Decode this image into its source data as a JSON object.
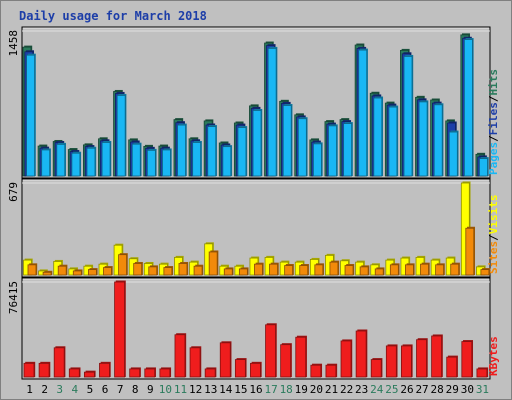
{
  "chart_data": {
    "type": "bar",
    "title": "Daily usage for March 2018",
    "x": [
      "1",
      "2",
      "3",
      "4",
      "5",
      "6",
      "7",
      "8",
      "9",
      "10",
      "11",
      "12",
      "13",
      "14",
      "15",
      "16",
      "17",
      "18",
      "19",
      "20",
      "21",
      "22",
      "23",
      "24",
      "25",
      "26",
      "27",
      "28",
      "29",
      "30",
      "31"
    ],
    "weekend_days": [
      "3",
      "4",
      "10",
      "11",
      "17",
      "18",
      "24",
      "25",
      "31"
    ],
    "panels": [
      {
        "name": "pages-files-hits",
        "ymax_label": "1458",
        "ymax": 1458,
        "labels": [
          "Pages",
          "/",
          "Files",
          "/",
          "Hits"
        ],
        "series": [
          {
            "name": "Hits",
            "color": "#2a7b5c",
            "values": [
              1296,
              301,
              347,
              266,
              313,
              374,
              850,
              363,
              298,
              301,
              567,
              374,
              554,
              332,
              533,
              705,
              1337,
              751,
              615,
              363,
              547,
              567,
              1317,
              832,
              733,
              1263,
              791,
              764,
              554,
              1419,
              218
            ]
          },
          {
            "name": "Files",
            "color": "#1d3ea8",
            "values": [
              1249,
              280,
              337,
              246,
              296,
              354,
              830,
              342,
              278,
              280,
              536,
              354,
              513,
              312,
              512,
              680,
              1311,
              730,
              594,
              341,
              522,
              547,
              1283,
              805,
              713,
              1229,
              766,
              733,
              533,
              1385,
              192
            ]
          },
          {
            "name": "Pages",
            "color": "#19b7f4",
            "values": [
              1215,
              262,
              318,
              229,
              279,
              337,
              810,
              320,
              258,
              262,
              512,
              337,
              497,
              295,
              487,
              659,
              1283,
              709,
              576,
              323,
              504,
              527,
              1266,
              784,
              693,
              1202,
              745,
              716,
              442,
              1372,
              175
            ]
          }
        ]
      },
      {
        "name": "sites-visits",
        "ymax_label": "679",
        "ymax": 679,
        "labels": [
          "Sites",
          "/",
          "Visits"
        ],
        "series": [
          {
            "name": "Visits",
            "color": "#ffff00",
            "values": [
              110,
              30,
              100,
              45,
              65,
              80,
              220,
              120,
              85,
              80,
              130,
              95,
              230,
              65,
              65,
              125,
              130,
              95,
              95,
              115,
              145,
              105,
              95,
              75,
              110,
              125,
              130,
              110,
              125,
              679,
              60
            ]
          },
          {
            "name": "Sites",
            "color": "#f28a0a",
            "values": [
              75,
              20,
              65,
              30,
              40,
              55,
              150,
              85,
              60,
              55,
              85,
              65,
              170,
              45,
              45,
              80,
              80,
              70,
              70,
              75,
              95,
              70,
              60,
              45,
              75,
              75,
              80,
              75,
              80,
              345,
              40
            ]
          }
        ]
      },
      {
        "name": "kbytes",
        "ymax_label": "76415",
        "ymax": 76415,
        "labels": [
          "KBytes"
        ],
        "series": [
          {
            "name": "KBytes",
            "color": "#ef1d1d",
            "values": [
              11000,
              11000,
              23500,
              6500,
              3900,
              11000,
              76415,
              6500,
              6500,
              6500,
              34000,
              23500,
              6500,
              27500,
              14000,
              11000,
              42000,
              26000,
              32000,
              9500,
              9500,
              29000,
              37000,
              14000,
              25000,
              25000,
              30000,
              33000,
              16000,
              28500,
              6500
            ]
          }
        ]
      }
    ]
  },
  "colors": {
    "frame_background": "#c0c0c0",
    "panel_background": "#c0c0c0",
    "title": "#1d3ea8",
    "axis_text": "#000000",
    "weekday_text": "#000000",
    "weekend_text": "#2a7b5c"
  }
}
